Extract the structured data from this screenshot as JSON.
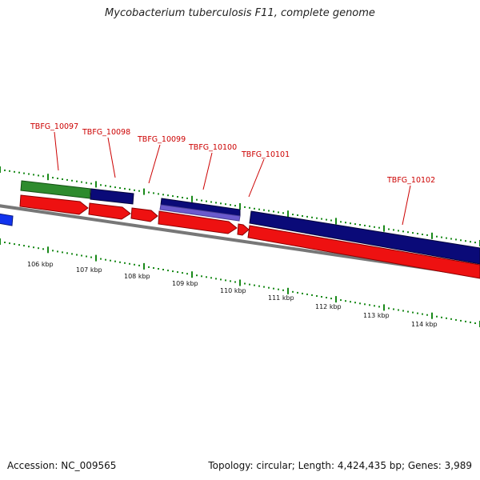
{
  "title": "Mycobacterium tuberculosis F11, complete genome",
  "footer": {
    "accession": "Accession: NC_009565",
    "summary": "Topology: circular; Length: 4,424,435 bp; Genes: 3,989"
  },
  "colors": {
    "forward_cds": "#ee1111",
    "reverse_cds": "#0a0a78",
    "rna_green": "#2e8b2e",
    "light_purple": "#6a5acd",
    "left_blue": "#1133ee",
    "tick_green": "#1a8a1a",
    "label_red": "#cc0000",
    "backbone": "#777777"
  },
  "scale_ticks": [
    "106 kbp",
    "107 kbp",
    "108 kbp",
    "109 kbp",
    "110 kbp",
    "111 kbp",
    "112 kbp",
    "113 kbp",
    "114 kbp"
  ],
  "gene_labels": [
    "TBFG_10097",
    "TBFG_10098",
    "TBFG_10099",
    "TBFG_10100",
    "TBFG_10101",
    "TBFG_10102"
  ]
}
